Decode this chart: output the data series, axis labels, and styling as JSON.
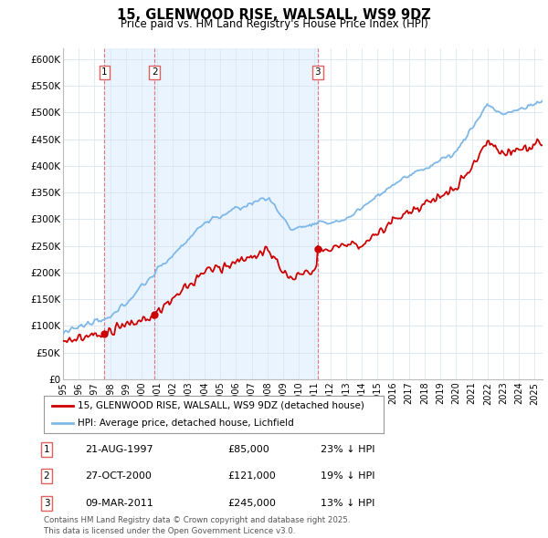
{
  "title": "15, GLENWOOD RISE, WALSALL, WS9 9DZ",
  "subtitle": "Price paid vs. HM Land Registry's House Price Index (HPI)",
  "ylabel_ticks": [
    "£0",
    "£50K",
    "£100K",
    "£150K",
    "£200K",
    "£250K",
    "£300K",
    "£350K",
    "£400K",
    "£450K",
    "£500K",
    "£550K",
    "£600K"
  ],
  "ytick_values": [
    0,
    50000,
    100000,
    150000,
    200000,
    250000,
    300000,
    350000,
    400000,
    450000,
    500000,
    550000,
    600000
  ],
  "hpi_color": "#7eb8e8",
  "hpi_fill_color": "#ddeeff",
  "price_color": "#cc0000",
  "vline_color": "#e06060",
  "background_color": "#ffffff",
  "grid_color": "#d8e4f0",
  "purchases": [
    {
      "label": "1",
      "date_num": 1997.64,
      "price": 85000,
      "pct": "23% ↓ HPI",
      "date_str": "21-AUG-1997"
    },
    {
      "label": "2",
      "date_num": 2000.82,
      "price": 121000,
      "pct": "19% ↓ HPI",
      "date_str": "27-OCT-2000"
    },
    {
      "label": "3",
      "date_num": 2011.19,
      "price": 245000,
      "pct": "13% ↓ HPI",
      "date_str": "09-MAR-2011"
    }
  ],
  "legend_entries": [
    "15, GLENWOOD RISE, WALSALL, WS9 9DZ (detached house)",
    "HPI: Average price, detached house, Lichfield"
  ],
  "footer": "Contains HM Land Registry data © Crown copyright and database right 2025.\nThis data is licensed under the Open Government Licence v3.0.",
  "xmin": 1995.0,
  "xmax": 2025.5,
  "ymin": 0,
  "ymax": 620000
}
